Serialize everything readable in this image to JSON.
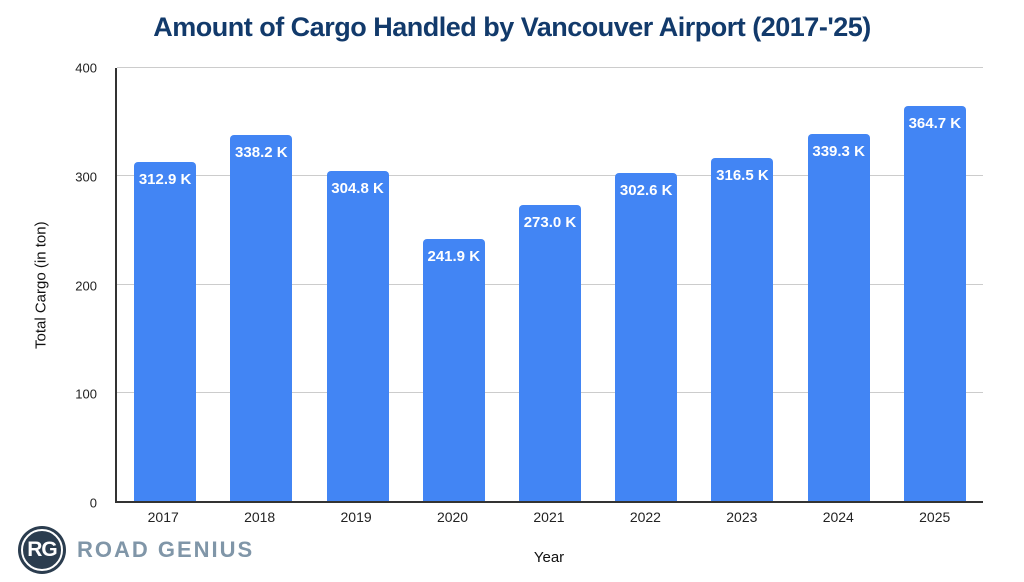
{
  "chart_data": {
    "type": "bar",
    "title": "Amount of Cargo Handled by Vancouver Airport (2017-'25)",
    "xlabel": "Year",
    "ylabel": "Total Cargo (in ton)",
    "ylim": [
      0,
      400
    ],
    "yticks": [
      0,
      100,
      200,
      300,
      400
    ],
    "grid": true,
    "legend_position": "none",
    "categories": [
      "2017",
      "2018",
      "2019",
      "2020",
      "2021",
      "2022",
      "2023",
      "2024",
      "2025"
    ],
    "values": [
      312.9,
      338.2,
      304.8,
      241.9,
      273.0,
      302.6,
      316.5,
      339.3,
      364.7
    ],
    "bar_labels": [
      "312.9 K",
      "338.2 K",
      "304.8 K",
      "241.9 K",
      "273.0 K",
      "302.6 K",
      "316.5 K",
      "339.3 K",
      "364.7 K"
    ]
  },
  "colors": {
    "bar": "#4285F4",
    "bar_label": "#FFFFFF",
    "title": "#123A6B",
    "axis": "#333333",
    "grid": "#CCCCCC",
    "logo_circle": "#2B3D4F",
    "logo_text": "#8096A8"
  },
  "branding": {
    "logo_monogram": "RG",
    "logo_text": "ROAD GENIUS"
  }
}
